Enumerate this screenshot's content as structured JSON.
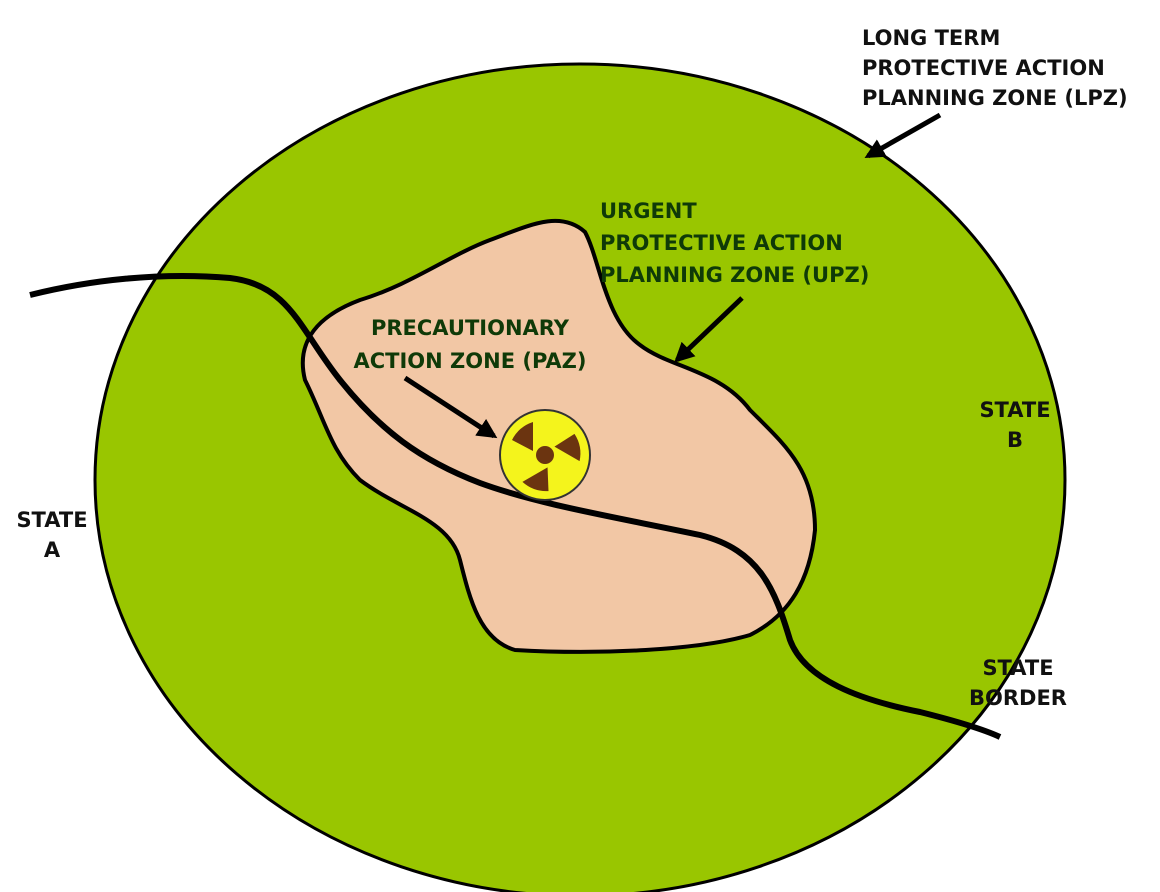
{
  "labels": {
    "lpz": [
      "LONG TERM",
      "PROTECTIVE ACTION",
      "PLANNING ZONE (LPZ)"
    ],
    "upz": [
      "URGENT",
      "PROTECTIVE ACTION",
      "PLANNING ZONE (UPZ)"
    ],
    "paz": [
      "PRECAUTIONARY",
      "ACTION ZONE (PAZ)"
    ],
    "state_a": [
      "STATE",
      "A"
    ],
    "state_b": [
      "STATE",
      "B"
    ],
    "state_border": [
      "STATE",
      "BORDER"
    ]
  }
}
